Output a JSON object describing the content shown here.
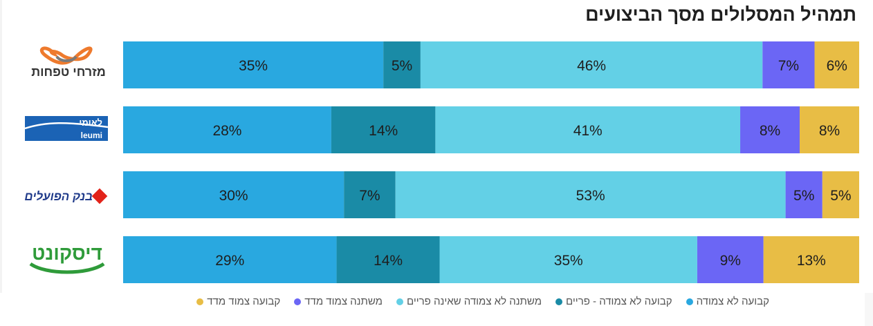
{
  "chart_data": {
    "type": "bar",
    "title": "תמהיל המסלולים מסך הביצועים",
    "categories": [
      "מזרחי טפחות",
      "לאומי leumi",
      "בנק הפועלים",
      "דיסקונט"
    ],
    "series": [
      {
        "name": "קבועה לא צמודה",
        "color": "#29a8e0",
        "values": [
          35,
          28,
          30,
          29
        ]
      },
      {
        "name": "קבועה לא צמודה - פריים",
        "color": "#1a8ba6",
        "values": [
          5,
          14,
          7,
          14
        ]
      },
      {
        "name": "משתנה לא צמודה שאינה פריים",
        "color": "#63d0e6",
        "values": [
          46,
          41,
          53,
          35
        ]
      },
      {
        "name": "משתנה צמוד מדד",
        "color": "#6b66f5",
        "values": [
          7,
          8,
          5,
          9
        ]
      },
      {
        "name": "קבועה צמוד מדד",
        "color": "#e8bd45",
        "values": [
          6,
          8,
          5,
          13
        ]
      }
    ],
    "stacked": true,
    "percent": true,
    "legend": "bottom"
  },
  "logos": {
    "mizrahi": {
      "text": "מזרחי טפחות",
      "color": "#ee7a2d"
    },
    "leumi": {
      "text_he": "לאומי",
      "text_en": "leumi",
      "color": "#1b63b5"
    },
    "hapoalim": {
      "text": "בנק הפועלים",
      "color": "#1f3a8a",
      "mark_color": "#e2231a"
    },
    "discount": {
      "text": "דיסקונט",
      "color": "#2f9b3a"
    }
  }
}
